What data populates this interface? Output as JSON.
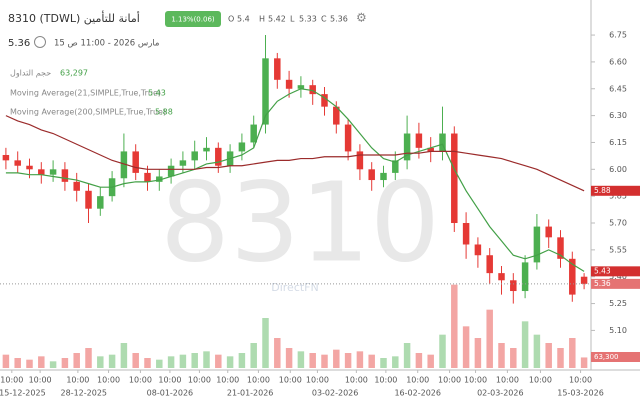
{
  "chart_data": {
    "type": "candlestick",
    "title": "8310 (TDWL) أمانة للتأمين",
    "change_label": "1.13%(0.06)",
    "ohlc_labels": [
      "O",
      "H",
      "L",
      "C"
    ],
    "datetime": "مارس 2026 - 11:00 ص 15",
    "watermark": "8310",
    "brand": "DirectFN",
    "up_color": "#4caf50",
    "down_color": "#e53935",
    "open": [
      6.08,
      6.05,
      6.02,
      6.0,
      5.97,
      6.0,
      5.93,
      5.88,
      5.78,
      5.85,
      5.95,
      6.1,
      5.98,
      5.93,
      5.96,
      6.02,
      6.05,
      6.1,
      6.12,
      6.02,
      6.1,
      6.15,
      6.25,
      6.62,
      6.5,
      6.45,
      6.47,
      6.42,
      6.35,
      6.25,
      6.1,
      6.0,
      5.94,
      5.98,
      6.05,
      6.2,
      6.12,
      6.1,
      6.2,
      5.7,
      5.58,
      5.52,
      5.42,
      5.38,
      5.32,
      5.48,
      5.68,
      5.62,
      5.5,
      5.4
    ],
    "high": [
      6.12,
      6.1,
      6.06,
      6.04,
      6.05,
      6.04,
      5.98,
      5.92,
      5.9,
      5.99,
      6.2,
      6.14,
      6.02,
      6.0,
      6.06,
      6.1,
      6.16,
      6.18,
      6.15,
      6.14,
      6.2,
      6.3,
      6.75,
      6.65,
      6.55,
      6.52,
      6.5,
      6.46,
      6.38,
      6.28,
      6.14,
      6.04,
      6.02,
      6.1,
      6.3,
      6.26,
      6.18,
      6.35,
      6.24,
      5.76,
      5.62,
      5.56,
      5.46,
      5.42,
      5.52,
      5.75,
      5.72,
      5.66,
      5.54,
      5.42
    ],
    "low": [
      6.0,
      5.98,
      5.95,
      5.92,
      5.93,
      5.88,
      5.82,
      5.7,
      5.74,
      5.82,
      5.9,
      5.94,
      5.88,
      5.88,
      5.92,
      5.98,
      6.0,
      6.05,
      5.98,
      5.98,
      6.05,
      6.12,
      6.2,
      6.45,
      6.4,
      6.4,
      6.36,
      6.3,
      6.2,
      6.05,
      5.94,
      5.88,
      5.9,
      5.94,
      6.0,
      6.06,
      6.04,
      6.05,
      5.65,
      5.5,
      5.45,
      5.36,
      5.3,
      5.25,
      5.28,
      5.44,
      5.56,
      5.45,
      5.26,
      5.33
    ],
    "close": [
      6.05,
      6.02,
      6.0,
      5.97,
      6.0,
      5.93,
      5.88,
      5.78,
      5.85,
      5.95,
      6.1,
      5.98,
      5.93,
      5.96,
      6.02,
      6.05,
      6.1,
      6.12,
      6.02,
      6.1,
      6.15,
      6.25,
      6.62,
      6.5,
      6.45,
      6.47,
      6.42,
      6.35,
      6.25,
      6.1,
      6.0,
      5.94,
      5.98,
      6.05,
      6.2,
      6.12,
      6.1,
      6.2,
      5.7,
      5.58,
      5.52,
      5.42,
      5.38,
      5.32,
      5.48,
      5.68,
      5.62,
      5.5,
      5.3,
      5.36
    ],
    "series": [
      {
        "name": "Moving Average(21,SIMPLE,True,True)",
        "color": "#43a047",
        "values": [
          5.98,
          5.98,
          5.97,
          5.97,
          5.96,
          5.95,
          5.94,
          5.92,
          5.9,
          5.9,
          5.92,
          5.93,
          5.93,
          5.94,
          5.96,
          5.98,
          6.0,
          6.03,
          6.04,
          6.06,
          6.08,
          6.12,
          6.3,
          6.38,
          6.42,
          6.45,
          6.44,
          6.4,
          6.35,
          6.28,
          6.2,
          6.12,
          6.06,
          6.04,
          6.08,
          6.1,
          6.12,
          6.14,
          6.0,
          5.88,
          5.78,
          5.68,
          5.6,
          5.52,
          5.5,
          5.52,
          5.55,
          5.52,
          5.47,
          5.43
        ]
      },
      {
        "name": "Moving Average(200,SIMPLE,True,True)",
        "color": "#9b2b2b",
        "values": [
          6.3,
          6.27,
          6.25,
          6.22,
          6.2,
          6.17,
          6.14,
          6.11,
          6.08,
          6.05,
          6.03,
          6.01,
          6.0,
          6.0,
          6.0,
          6.0,
          6.0,
          6.01,
          6.01,
          6.02,
          6.02,
          6.03,
          6.04,
          6.05,
          6.05,
          6.06,
          6.06,
          6.07,
          6.07,
          6.07,
          6.08,
          6.08,
          6.08,
          6.08,
          6.09,
          6.09,
          6.1,
          6.1,
          6.1,
          6.09,
          6.08,
          6.07,
          6.06,
          6.04,
          6.02,
          6.0,
          5.97,
          5.94,
          5.91,
          5.88
        ]
      }
    ],
    "volume": {
      "name": "حجم التداول",
      "legend_label": "63,297",
      "badge_label": "63,300",
      "ylim": [
        0,
        600000
      ],
      "values": [
        80000,
        60000,
        50000,
        70000,
        40000,
        60000,
        90000,
        120000,
        70000,
        80000,
        150000,
        90000,
        60000,
        50000,
        70000,
        80000,
        90000,
        100000,
        80000,
        70000,
        90000,
        150000,
        300000,
        180000,
        120000,
        100000,
        90000,
        80000,
        110000,
        90000,
        100000,
        80000,
        60000,
        70000,
        150000,
        90000,
        80000,
        200000,
        500000,
        250000,
        180000,
        350000,
        150000,
        120000,
        280000,
        200000,
        150000,
        120000,
        180000,
        63297
      ]
    },
    "xlim": [
      -0.5,
      49.5
    ],
    "ylim": [
      4.89,
      6.89
    ],
    "yticks": [
      6.75,
      {
        "value": 6.6,
        "label": "6.60"
      },
      6.45,
      {
        "value": 6.3,
        "label": "6.30"
      },
      6.15,
      {
        "value": 6,
        "label": "6.00"
      },
      5.85,
      {
        "value": 5.7,
        "label": "5.70"
      },
      5.55,
      {
        "value": 5.4,
        "label": "5.40"
      },
      5.25,
      {
        "value": 5.1,
        "label": "5.10"
      }
    ],
    "xticks": [
      {
        "value": 0.5,
        "label": "10:00"
      },
      {
        "value": 2.9,
        "label": "10:00"
      },
      {
        "value": 6.1,
        "label": "10:00"
      },
      {
        "value": 8.7,
        "label": "10:00"
      },
      {
        "value": 11.4,
        "label": "10:00"
      },
      {
        "value": 13.9,
        "label": "10:00"
      },
      {
        "value": 16.4,
        "label": "10:00"
      },
      {
        "value": 18.8,
        "label": "10:00"
      },
      {
        "value": 21.4,
        "label": "10:00"
      },
      {
        "value": 24.1,
        "label": "10:00"
      },
      {
        "value": 26.4,
        "label": "10:00"
      },
      {
        "value": 29.7,
        "label": "10:00"
      },
      {
        "value": 32.2,
        "label": "10:00"
      },
      {
        "value": 34.9,
        "label": "10:00"
      },
      {
        "value": 37.6,
        "label": "10:00"
      },
      {
        "value": 39.8,
        "label": "10:00"
      },
      {
        "value": 42.5,
        "label": "10:00"
      },
      {
        "value": 45.3,
        "label": "10:00"
      },
      {
        "value": 48.7,
        "label": "10:00"
      }
    ],
    "date_ticks": [
      {
        "value": 1.4,
        "label": "15-12-2025"
      },
      {
        "value": 6.6,
        "label": "28-12-2025"
      },
      {
        "value": 13.9,
        "label": "08-01-2026"
      },
      {
        "value": 20.7,
        "label": "21-01-2026"
      },
      {
        "value": 27.9,
        "label": "03-02-2026"
      },
      {
        "value": 34.9,
        "label": "16-02-2026"
      },
      {
        "value": 41.9,
        "label": "02-03-2026"
      },
      {
        "value": 48.7,
        "label": "15-03-2026"
      }
    ]
  }
}
